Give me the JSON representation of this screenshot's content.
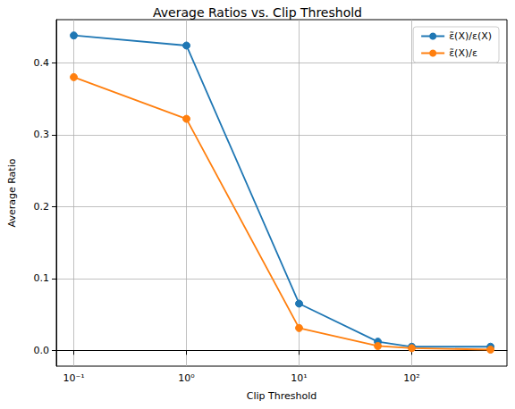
{
  "chart_data": {
    "type": "line",
    "title": "Average Ratios vs. Clip Threshold",
    "x_label": "Clip Threshold",
    "y_label": "Average Ratio",
    "x": [
      0.1,
      1,
      10,
      50,
      100,
      500
    ],
    "series": [
      {
        "name": "ε̃(X)/ε(X)",
        "color": "#1f77b4",
        "marker": "circle",
        "values": [
          0.438,
          0.424,
          0.065,
          0.012,
          0.005,
          0.005
        ]
      },
      {
        "name": "ε̃(X)/ε",
        "color": "#ff7f0e",
        "marker": "circle",
        "values": [
          0.38,
          0.322,
          0.031,
          0.006,
          0.003,
          0.001
        ]
      }
    ],
    "log": "x",
    "xlim": [
      0.07,
      700
    ],
    "xticks": [
      {
        "value": 0.1,
        "label": "10⁻¹"
      },
      {
        "value": 1,
        "label": "10⁰"
      },
      {
        "value": 10,
        "label": "10¹"
      },
      {
        "value": 100,
        "label": "10²"
      }
    ],
    "ylim": [
      -0.022,
      0.46
    ],
    "yticks": [
      {
        "value": 0,
        "label": "0.0"
      },
      0.1,
      0.2,
      0.3,
      0.4
    ],
    "grid": true,
    "legend": "upper right"
  }
}
